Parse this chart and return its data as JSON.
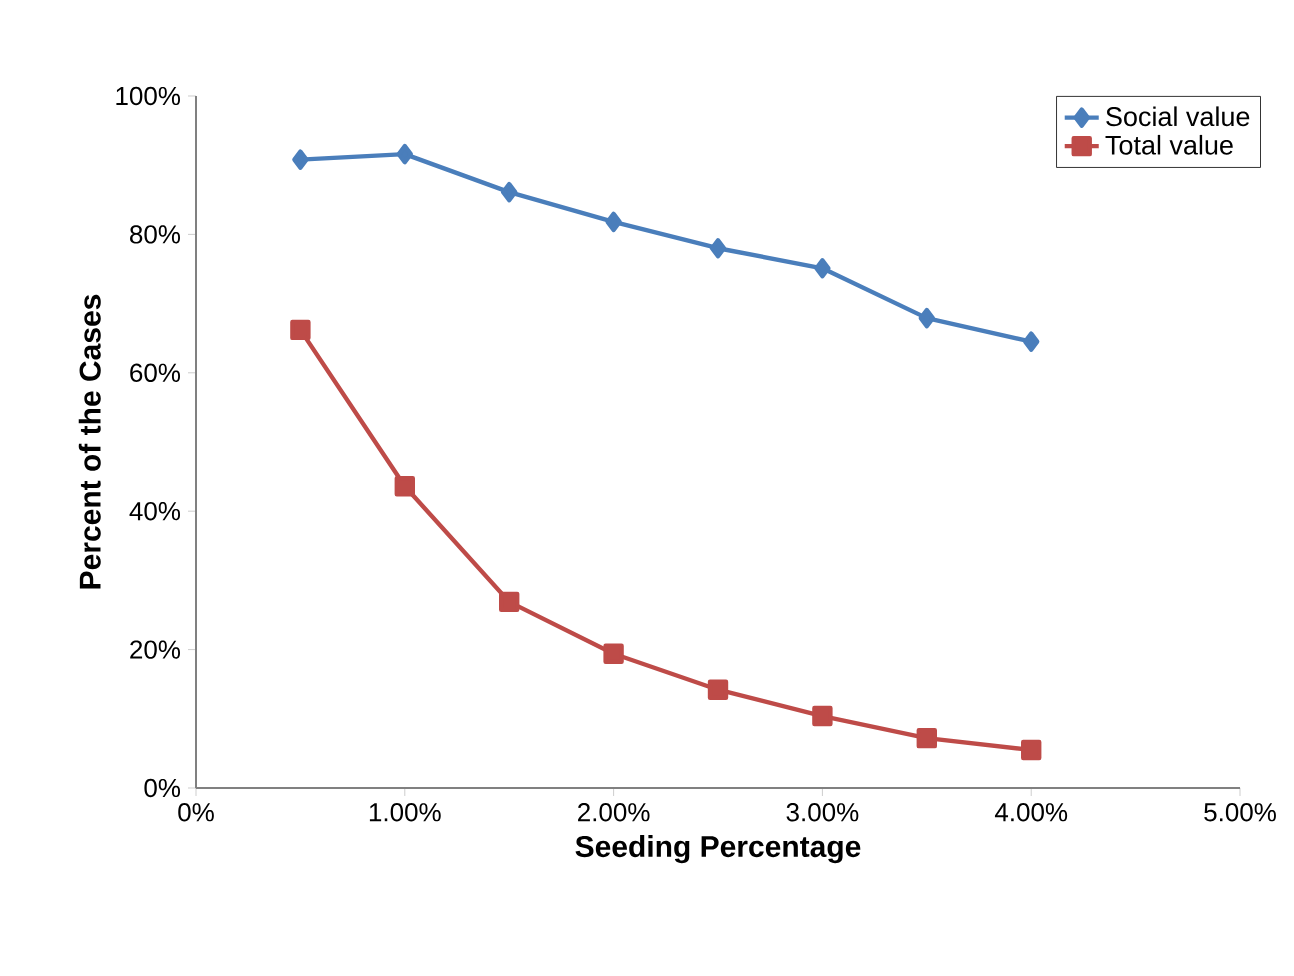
{
  "chart_data": {
    "type": "line",
    "xlabel": "Seeding Percentage",
    "ylabel": "Percent of the Cases",
    "x": [
      0.5,
      1.0,
      1.5,
      2.0,
      2.5,
      3.0,
      3.5,
      4.0
    ],
    "series": [
      {
        "name": "Social value",
        "color": "#4a7ebb",
        "marker": "diamond",
        "values": [
          90.8,
          91.6,
          86.1,
          81.8,
          78.0,
          75.1,
          67.9,
          64.5
        ]
      },
      {
        "name": "Total value",
        "color": "#be4b48",
        "marker": "square",
        "values": [
          66.2,
          43.6,
          26.9,
          19.4,
          14.2,
          10.4,
          7.2,
          5.5
        ]
      }
    ],
    "xlim": [
      0,
      5
    ],
    "ylim": [
      0,
      100
    ],
    "xticks": [
      {
        "value": 0,
        "label": "0%"
      },
      {
        "value": 1,
        "label": "1.00%"
      },
      {
        "value": 2,
        "label": "2.00%"
      },
      {
        "value": 3,
        "label": "3.00%"
      },
      {
        "value": 4,
        "label": "4.00%"
      },
      {
        "value": 5,
        "label": "5.00%"
      }
    ],
    "yticks": [
      {
        "value": 0,
        "label": "0%"
      },
      {
        "value": 20,
        "label": "20%"
      },
      {
        "value": 40,
        "label": "40%"
      },
      {
        "value": 60,
        "label": "60%"
      },
      {
        "value": 80,
        "label": "80%"
      },
      {
        "value": 100,
        "label": "100%"
      }
    ],
    "grid": false,
    "legend": "top right",
    "line_style": "solid"
  }
}
